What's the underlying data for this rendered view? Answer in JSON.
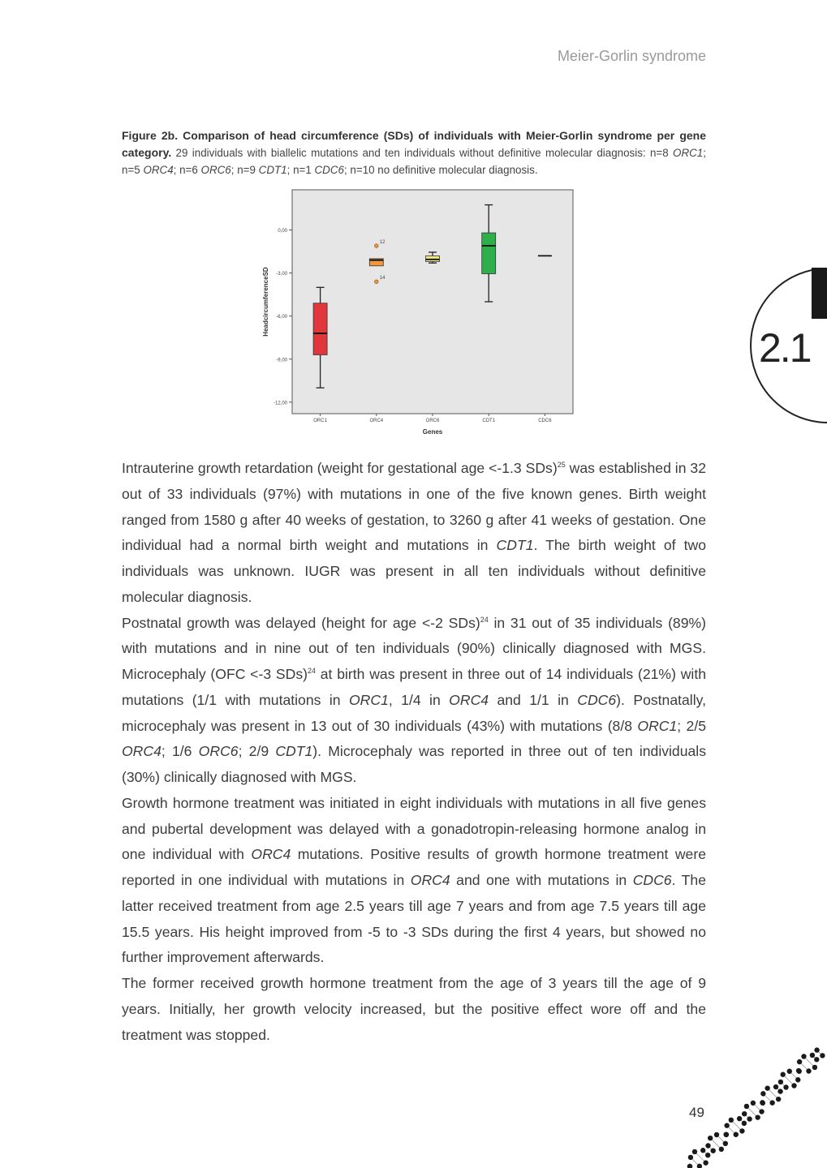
{
  "header": {
    "running_title": "Meier-Gorlin syndrome"
  },
  "caption": {
    "label": "Figure 2b. Comparison of head circumference (SDs) of individuals with Meier-Gorlin syndrome per gene category.",
    "segments": [
      {
        "t": " 29 individuals with biallelic mutations and ten individuals without definitive molecular diagnosis: n=8 "
      },
      {
        "t": "ORC1",
        "i": true
      },
      {
        "t": "; n=5 "
      },
      {
        "t": "ORC4",
        "i": true
      },
      {
        "t": "; n=6 "
      },
      {
        "t": "ORC6",
        "i": true
      },
      {
        "t": "; n=9 "
      },
      {
        "t": "CDT1",
        "i": true
      },
      {
        "t": "; n=1 "
      },
      {
        "t": "CDC6",
        "i": true
      },
      {
        "t": "; n=10 no definitive molecular diagnosis."
      }
    ]
  },
  "chart_data": {
    "type": "box",
    "xlabel": "Genes",
    "ylabel": "HeadcircumferenceSD",
    "categories": [
      "ORC1",
      "ORC4",
      "ORC6",
      "CDT1",
      "CDC6"
    ],
    "yticks": [
      "0,00",
      "-3,00",
      "-6,00",
      "-9,00",
      "-12,00"
    ],
    "ytick_values": [
      0,
      -3,
      -6,
      -9,
      -12
    ],
    "ylim": [
      -12.8,
      2.8
    ],
    "grid": false,
    "background": "#e6e6e6",
    "series": [
      {
        "category": "ORC1",
        "min": -11.0,
        "q1": -8.7,
        "median": -7.2,
        "q3": -5.1,
        "max": -4.0,
        "color": "#e0363c",
        "outliers": []
      },
      {
        "category": "ORC4",
        "min": -2.5,
        "q1": -2.5,
        "median": -2.1,
        "q3": -2.0,
        "max": -2.0,
        "color": "#f0963c",
        "outliers": [
          {
            "label": "12",
            "value": -1.1
          },
          {
            "label": "14",
            "value": -3.6
          }
        ]
      },
      {
        "category": "ORC6",
        "min": -2.3,
        "q1": -2.2,
        "median": -2.05,
        "q3": -1.8,
        "max": -1.55,
        "color": "#f2ea7a",
        "outliers": []
      },
      {
        "category": "CDT1",
        "min": -5.0,
        "q1": -3.05,
        "median": -1.1,
        "q3": -0.2,
        "max": 1.75,
        "color": "#2fae4c",
        "outliers": []
      },
      {
        "category": "CDC6",
        "min": -1.8,
        "q1": -1.8,
        "median": -1.8,
        "q3": -1.8,
        "max": -1.8,
        "color": "#2fae4c",
        "outliers": []
      }
    ]
  },
  "body": {
    "paragraphs": [
      [
        {
          "t": "Intrauterine growth retardation (weight for gestational age <-1.3 SDs)"
        },
        {
          "t": "25",
          "sup": true
        },
        {
          "t": " was established in 32 out of 33 individuals (97%) with mutations in one of the five known genes. Birth weight ranged from 1580 g after 40 weeks of gestation, to 3260 g after 41 weeks of gestation. One individual had a normal birth weight and mutations in "
        },
        {
          "t": "CDT1",
          "i": true
        },
        {
          "t": ". The birth weight of two individuals was unknown. IUGR was present in all ten individuals without definitive molecular diagnosis."
        }
      ],
      [
        {
          "t": "Postnatal growth was delayed (height for age <-2 SDs)"
        },
        {
          "t": "24",
          "sup": true
        },
        {
          "t": " in 31 out of 35 individuals (89%) with mutations and in nine out of ten individuals (90%) clinically diagnosed with MGS. Microcephaly (OFC <-3 SDs)"
        },
        {
          "t": "24",
          "sup": true
        },
        {
          "t": " at birth was present in three out of 14 individuals (21%) with mutations (1/1 with mutations in "
        },
        {
          "t": "ORC1",
          "i": true
        },
        {
          "t": ", 1/4 in "
        },
        {
          "t": "ORC4",
          "i": true
        },
        {
          "t": " and 1/1 in "
        },
        {
          "t": "CDC6",
          "i": true
        },
        {
          "t": "). Postnatally, microcephaly was present in 13 out of 30 individuals (43%) with mutations (8/8 "
        },
        {
          "t": "ORC1",
          "i": true
        },
        {
          "t": "; 2/5 "
        },
        {
          "t": "ORC4",
          "i": true
        },
        {
          "t": "; 1/6 "
        },
        {
          "t": "ORC6",
          "i": true
        },
        {
          "t": "; 2/9 "
        },
        {
          "t": "CDT1",
          "i": true
        },
        {
          "t": "). Microcephaly was reported in three out of ten individuals (30%) clinically diagnosed with MGS."
        }
      ],
      [
        {
          "t": "Growth hormone treatment was initiated in eight individuals with mutations in all five genes and pubertal development was delayed with a gonadotropin-releasing hormone analog in one individual with "
        },
        {
          "t": "ORC4",
          "i": true
        },
        {
          "t": " mutations. Positive results of growth hormone treatment were reported in one individual with mutations in "
        },
        {
          "t": "ORC4",
          "i": true
        },
        {
          "t": " and one with mutations in "
        },
        {
          "t": "CDC6",
          "i": true
        },
        {
          "t": ". The latter received treatment from age 2.5 years till age 7 years and from age 7.5 years till age 15.5 years. His height improved from -5 to -3 SDs during the first 4 years, but showed no further improvement afterwards."
        }
      ],
      [
        {
          "t": "The former received growth hormone treatment from the age of 3 years till the age of 9 years. Initially, her growth velocity increased, but the positive effect wore off and the treatment was stopped."
        }
      ]
    ]
  },
  "footer": {
    "page_number": "49"
  },
  "side_tab": {
    "chapter": "2.1"
  }
}
